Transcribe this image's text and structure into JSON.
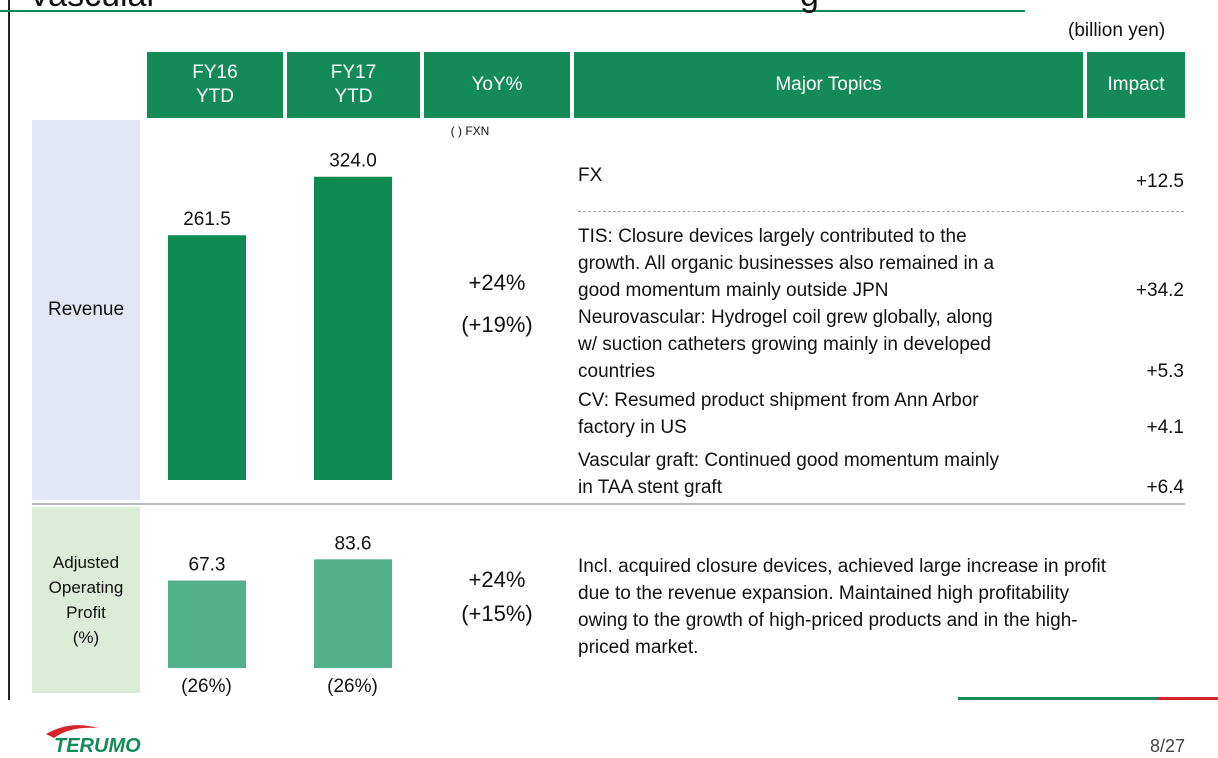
{
  "title_fragments": [
    "Vascular",
    "g"
  ],
  "unit": "(billion yen)",
  "header": [
    "FY16\nYTD",
    "FY17\nYTD",
    "YoY%",
    "Major Topics",
    "Impact"
  ],
  "fxn_note": "( ) FXN",
  "revenue": {
    "label": "Revenue",
    "values": [
      261.5,
      324
    ],
    "value_labels": [
      "261.5",
      "324.0"
    ],
    "yoy": "+24%",
    "yoy_fxn": "(+19%)",
    "topics": [
      {
        "lines": [
          "FX"
        ],
        "impact": "+12.5"
      },
      {
        "lines": [
          "TIS: Closure devices largely contributed to the",
          "growth. All organic businesses also remained in a",
          "good momentum mainly outside JPN"
        ],
        "impact": "+34.2"
      },
      {
        "lines": [
          "Neurovascular: Hydrogel coil grew globally, along",
          "w/ suction catheters growing mainly in developed",
          "countries"
        ],
        "impact": "+5.3"
      },
      {
        "lines": [
          "CV: Resumed product shipment from Ann Arbor",
          "factory in US"
        ],
        "impact": "+4.1"
      },
      {
        "lines": [
          "Vascular graft: Continued good momentum mainly",
          "in TAA stent graft"
        ],
        "impact": "+6.4"
      }
    ]
  },
  "profit": {
    "label": "Adjusted\nOperating\nProfit\n(%)",
    "values": [
      67.3,
      83.6
    ],
    "margins": [
      "(26%)",
      "(26%)"
    ],
    "yoy": "+24%",
    "yoy_fxn": "(+15%)",
    "text": [
      "Incl. acquired closure devices, achieved large increase in profit",
      "due to the revenue expansion. Maintained high profitability",
      "owing to the growth of high-priced products and in the high-",
      "priced market."
    ]
  },
  "footer": {
    "logo": "TERUMO",
    "page": "8/27"
  }
}
